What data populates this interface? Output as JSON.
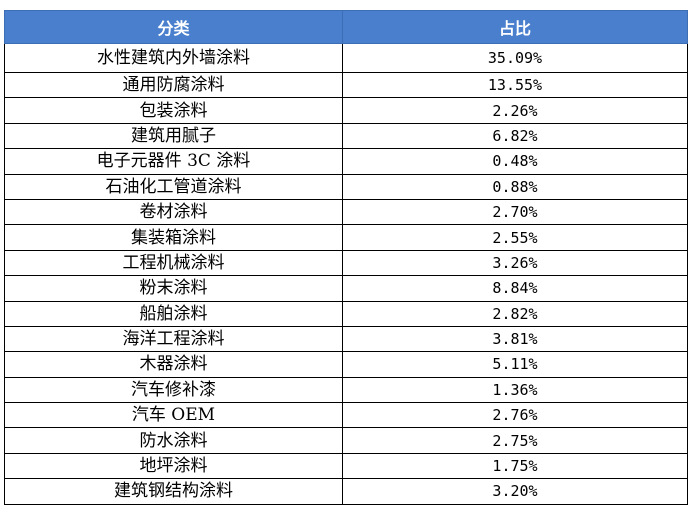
{
  "table": {
    "headers": [
      "分类",
      "占比"
    ],
    "rows": [
      {
        "category": "水性建筑内外墙涂料",
        "share": "35.09%"
      },
      {
        "category": "通用防腐涂料",
        "share": "13.55%"
      },
      {
        "category": "包装涂料",
        "share": "2.26%"
      },
      {
        "category": "建筑用腻子",
        "share": "6.82%"
      },
      {
        "category": "电子元器件 3C 涂料",
        "share": "0.48%"
      },
      {
        "category": "石油化工管道涂料",
        "share": "0.88%"
      },
      {
        "category": "卷材涂料",
        "share": "2.70%"
      },
      {
        "category": "集装箱涂料",
        "share": "2.55%"
      },
      {
        "category": "工程机械涂料",
        "share": "3.26%"
      },
      {
        "category": "粉末涂料",
        "share": "8.84%"
      },
      {
        "category": "船舶涂料",
        "share": "2.82%"
      },
      {
        "category": "海洋工程涂料",
        "share": "3.81%"
      },
      {
        "category": "木器涂料",
        "share": "5.11%"
      },
      {
        "category": "汽车修补漆",
        "share": "1.36%"
      },
      {
        "category": "汽车 OEM",
        "share": "2.76%"
      },
      {
        "category": "防水涂料",
        "share": "2.75%"
      },
      {
        "category": "地坪涂料",
        "share": "1.75%"
      },
      {
        "category": "建筑钢结构涂料",
        "share": "3.20%"
      }
    ]
  },
  "colors": {
    "header_bg": "#4a7fcd",
    "header_text": "#ffffff",
    "border": "#000000"
  }
}
